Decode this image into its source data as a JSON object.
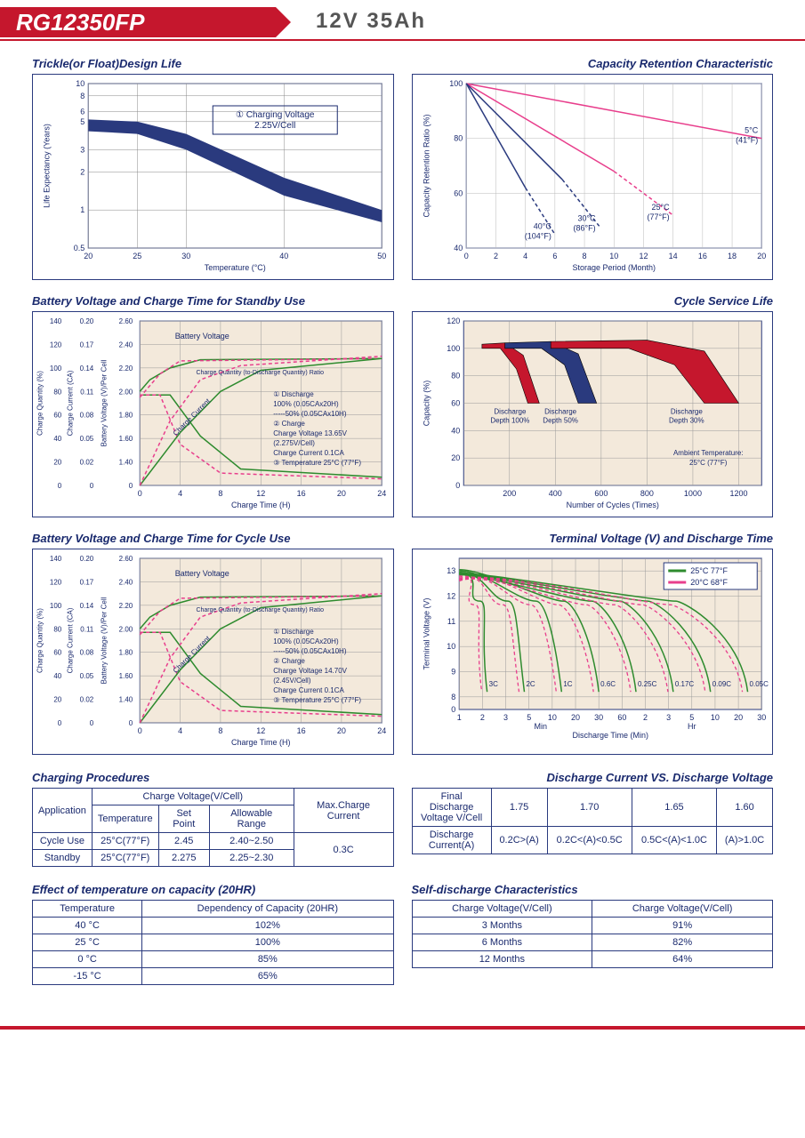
{
  "header": {
    "model": "RG12350FP",
    "spec": "12V  35Ah"
  },
  "charts": {
    "trickle": {
      "title": "Trickle(or Float)Design Life",
      "x_label": "Temperature (°C)",
      "y_label": "Life Expectancy (Years)",
      "x_ticks": [
        "20",
        "25",
        "30",
        "40",
        "50"
      ],
      "y_ticks": [
        "0.5",
        "1",
        "2",
        "3",
        "5",
        "6",
        "8",
        "10"
      ],
      "note1": "① Charging Voltage",
      "note2": "2.25V/Cell",
      "band_color": "#2a3a7e",
      "band_upper": [
        [
          20,
          5.2
        ],
        [
          25,
          5.0
        ],
        [
          30,
          4.0
        ],
        [
          40,
          1.8
        ],
        [
          50,
          1.0
        ]
      ],
      "band_lower": [
        [
          20,
          4.2
        ],
        [
          25,
          4.0
        ],
        [
          30,
          3.0
        ],
        [
          40,
          1.3
        ],
        [
          50,
          0.8
        ]
      ]
    },
    "retention": {
      "title": "Capacity Retention Characteristic",
      "x_label": "Storage Period (Month)",
      "y_label": "Capacity Retention Ratio (%)",
      "x_ticks": [
        "0",
        "2",
        "4",
        "6",
        "8",
        "10",
        "12",
        "14",
        "16",
        "18",
        "20"
      ],
      "y_ticks": [
        "40",
        "60",
        "80",
        "100"
      ],
      "lines": [
        {
          "label": "5°C (41°F)",
          "color": "#e83e8c",
          "pts": [
            [
              0,
              100
            ],
            [
              20,
              80
            ]
          ]
        },
        {
          "label": "25°C (77°F)",
          "color": "#e83e8c",
          "pts": [
            [
              0,
              100
            ],
            [
              10,
              68
            ],
            [
              14,
              52
            ]
          ],
          "dashed_after": 10
        },
        {
          "label": "30°C (86°F)",
          "color": "#2a3a7e",
          "pts": [
            [
              0,
              100
            ],
            [
              6.5,
              65
            ],
            [
              9,
              48
            ]
          ],
          "dashed_after": 6.5
        },
        {
          "label": "40°C (104°F)",
          "color": "#2a3a7e",
          "pts": [
            [
              0,
              100
            ],
            [
              4,
              62
            ],
            [
              6,
              45
            ]
          ],
          "dashed_after": 4
        }
      ]
    },
    "standby": {
      "title": "Battery Voltage and Charge Time for Standby Use",
      "x_label": "Charge Time (H)",
      "x_ticks": [
        "0",
        "4",
        "8",
        "12",
        "16",
        "20",
        "24"
      ],
      "y1_label": "Charge Quantity (%)",
      "y1_ticks": [
        "0",
        "20",
        "40",
        "60",
        "80",
        "100",
        "120",
        "140"
      ],
      "y2_label": "Charge Current (CA)",
      "y2_ticks": [
        "0",
        "0.02",
        "0.05",
        "0.08",
        "0.11",
        "0.14",
        "0.17",
        "0.20"
      ],
      "y3_label": "Battery Voltage (V)/Per Cell",
      "y3_ticks": [
        "0",
        "1.40",
        "1.60",
        "1.80",
        "2.00",
        "2.20",
        "2.40",
        "2.60"
      ],
      "note_lines": [
        "① Discharge",
        "   100% (0.05CAx20H)",
        "-----50% (0.05CAx10H)",
        "② Charge",
        "   Charge Voltage 13.65V",
        "   (2.275V/Cell)",
        "   Charge Current 0.1CA",
        "③ Temperature 25°C (77°F)"
      ],
      "bg_color": "#f3e9db",
      "green": "#2e8b2e",
      "pink": "#e83e8c",
      "curves": {
        "voltage_solid": [
          [
            0,
            2.0
          ],
          [
            1,
            2.1
          ],
          [
            3,
            2.2
          ],
          [
            6,
            2.27
          ],
          [
            24,
            2.28
          ]
        ],
        "voltage_dash": [
          [
            0,
            1.95
          ],
          [
            2,
            2.15
          ],
          [
            4,
            2.26
          ],
          [
            24,
            2.28
          ]
        ],
        "current_solid": [
          [
            0,
            0.11
          ],
          [
            3,
            0.11
          ],
          [
            6,
            0.06
          ],
          [
            10,
            0.02
          ],
          [
            24,
            0.01
          ]
        ],
        "current_dash": [
          [
            0,
            0.11
          ],
          [
            2,
            0.11
          ],
          [
            4,
            0.05
          ],
          [
            8,
            0.015
          ],
          [
            24,
            0.008
          ]
        ],
        "qty_solid": [
          [
            0,
            0
          ],
          [
            4,
            45
          ],
          [
            8,
            80
          ],
          [
            12,
            98
          ],
          [
            24,
            108
          ]
        ],
        "qty_dash": [
          [
            0,
            0
          ],
          [
            3,
            55
          ],
          [
            6,
            90
          ],
          [
            10,
            102
          ],
          [
            24,
            110
          ]
        ]
      }
    },
    "cycle_life": {
      "title": "Cycle Service Life",
      "x_label": "Number of Cycles (Times)",
      "y_label": "Capacity (%)",
      "x_ticks": [
        "200",
        "400",
        "600",
        "800",
        "1000",
        "1200"
      ],
      "y_ticks": [
        "0",
        "20",
        "40",
        "60",
        "80",
        "100",
        "120"
      ],
      "bg_color": "#f3e9db",
      "bands": [
        {
          "label": "Discharge Depth 100%",
          "color": "#c5172d",
          "upper": [
            [
              80,
              103
            ],
            [
              180,
              104
            ],
            [
              260,
              95
            ],
            [
              330,
              60
            ]
          ],
          "lower": [
            [
              80,
              100
            ],
            [
              160,
              100
            ],
            [
              230,
              85
            ],
            [
              280,
              60
            ]
          ]
        },
        {
          "label": "Discharge Depth 50%",
          "color": "#2a3a7e",
          "upper": [
            [
              180,
              104
            ],
            [
              380,
              105
            ],
            [
              500,
              96
            ],
            [
              580,
              60
            ]
          ],
          "lower": [
            [
              180,
              100
            ],
            [
              340,
              100
            ],
            [
              440,
              88
            ],
            [
              500,
              60
            ]
          ]
        },
        {
          "label": "Discharge Depth 30%",
          "color": "#c5172d",
          "upper": [
            [
              380,
              105
            ],
            [
              800,
              106
            ],
            [
              1050,
              98
            ],
            [
              1200,
              60
            ]
          ],
          "lower": [
            [
              380,
              100
            ],
            [
              720,
              100
            ],
            [
              920,
              88
            ],
            [
              1050,
              60
            ]
          ]
        }
      ],
      "ambient1": "Ambient Temperature:",
      "ambient2": "25°C (77°F)"
    },
    "cycle_use": {
      "title": "Battery Voltage and Charge Time for Cycle Use",
      "note_lines": [
        "① Discharge",
        "   100% (0.05CAx20H)",
        "-----50% (0.05CAx10H)",
        "② Charge",
        "   Charge Voltage 14.70V",
        "   (2.45V/Cell)",
        "   Charge Current 0.1CA",
        "③ Temperature 25°C (77°F)"
      ]
    },
    "terminal": {
      "title": "Terminal Voltage (V) and Discharge Time",
      "x_label": "Discharge Time (Min)",
      "y_label": "Terminal Voltage (V)",
      "y_ticks": [
        "0",
        "8",
        "9",
        "10",
        "11",
        "12",
        "13"
      ],
      "x_labels_min": [
        "1",
        "2",
        "3",
        "5",
        "10",
        "20",
        "30",
        "60"
      ],
      "x_labels_hr": [
        "2",
        "3",
        "5",
        "10",
        "20",
        "30"
      ],
      "min_label": "Min",
      "hr_label": "Hr",
      "legend": [
        {
          "c": "#2e8b2e",
          "t": "25°C 77°F"
        },
        {
          "c": "#e83e8c",
          "t": "20°C 68°F"
        }
      ],
      "bg_color": "#f3e9db",
      "rates": [
        "3C",
        "2C",
        "1C",
        "0.6C",
        "0.25C",
        "0.17C",
        "0.09C",
        "0.05C"
      ]
    }
  },
  "tables": {
    "charging": {
      "title": "Charging Procedures",
      "h1": "Application",
      "h2": "Charge Voltage(V/Cell)",
      "h3": "Max.Charge Current",
      "sub": [
        "Temperature",
        "Set Point",
        "Allowable Range"
      ],
      "rows": [
        [
          "Cycle Use",
          "25°C(77°F)",
          "2.45",
          "2.40~2.50"
        ],
        [
          "Standby",
          "25°C(77°F)",
          "2.275",
          "2.25~2.30"
        ]
      ],
      "max": "0.3C"
    },
    "discharge_iv": {
      "title": "Discharge Current VS. Discharge Voltage",
      "r1h": "Final Discharge Voltage V/Cell",
      "r1": [
        "1.75",
        "1.70",
        "1.65",
        "1.60"
      ],
      "r2h": "Discharge Current(A)",
      "r2": [
        "0.2C>(A)",
        "0.2C<(A)<0.5C",
        "0.5C<(A)<1.0C",
        "(A)>1.0C"
      ]
    },
    "temp_cap": {
      "title": "Effect of temperature on capacity (20HR)",
      "cols": [
        "Temperature",
        "Dependency of Capacity (20HR)"
      ],
      "rows": [
        [
          "40 °C",
          "102%"
        ],
        [
          "25 °C",
          "100%"
        ],
        [
          "0 °C",
          "85%"
        ],
        [
          "-15 °C",
          "65%"
        ]
      ]
    },
    "self_discharge": {
      "title": "Self-discharge Characteristics",
      "cols": [
        "Charge Voltage(V/Cell)",
        "Charge Voltage(V/Cell)"
      ],
      "rows": [
        [
          "3 Months",
          "91%"
        ],
        [
          "6 Months",
          "82%"
        ],
        [
          "12 Months",
          "64%"
        ]
      ]
    }
  }
}
